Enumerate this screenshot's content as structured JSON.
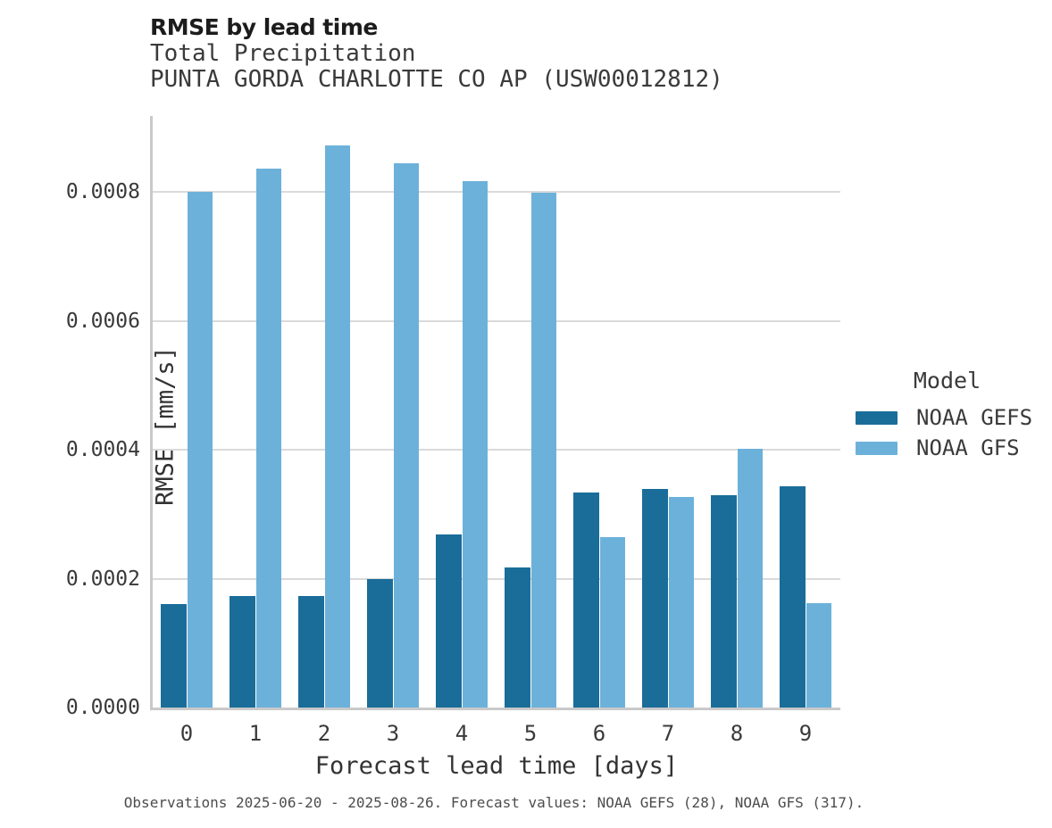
{
  "header": {
    "title": "RMSE by lead time",
    "subtitle": "Total Precipitation",
    "station": "PUNTA GORDA CHARLOTTE CO AP (USW00012812)"
  },
  "legend": {
    "title": "Model",
    "entries": [
      {
        "label": "NOAA GEFS",
        "color": "#1a6d99"
      },
      {
        "label": "NOAA GFS",
        "color": "#6cb1da"
      }
    ]
  },
  "footer": {
    "caption": "Observations 2025-06-20 - 2025-08-26. Forecast values: NOAA GEFS (28), NOAA GFS (317)."
  },
  "chart_data": {
    "type": "bar",
    "title": "RMSE by lead time",
    "subtitle": "Total Precipitation",
    "station": "PUNTA GORDA CHARLOTTE CO AP (USW00012812)",
    "xlabel": "Forecast lead time [days]",
    "ylabel": "RMSE [mm/s]",
    "categories": [
      "0",
      "1",
      "2",
      "3",
      "4",
      "5",
      "6",
      "7",
      "8",
      "9"
    ],
    "series": [
      {
        "name": "NOAA GEFS",
        "color": "#1a6d99",
        "values": [
          0.000161,
          0.000173,
          0.000173,
          0.000199,
          0.000268,
          0.000217,
          0.000334,
          0.000339,
          0.00033,
          0.000343
        ]
      },
      {
        "name": "NOAA GFS",
        "color": "#6cb1da",
        "values": [
          0.0008,
          0.000836,
          0.000872,
          0.000845,
          0.000816,
          0.000799,
          0.000264,
          0.000327,
          0.000401,
          0.000162
        ]
      }
    ],
    "ytick_values": [
      0,
      0.0002,
      0.0004,
      0.0006,
      0.0008
    ],
    "ytick_labels": [
      "0.0000",
      "0.0002",
      "0.0004",
      "0.0006",
      "0.0008"
    ],
    "ylim": [
      0,
      0.00092
    ],
    "grid": "horizontal",
    "legend_position": "right",
    "legend_title": "Model"
  }
}
